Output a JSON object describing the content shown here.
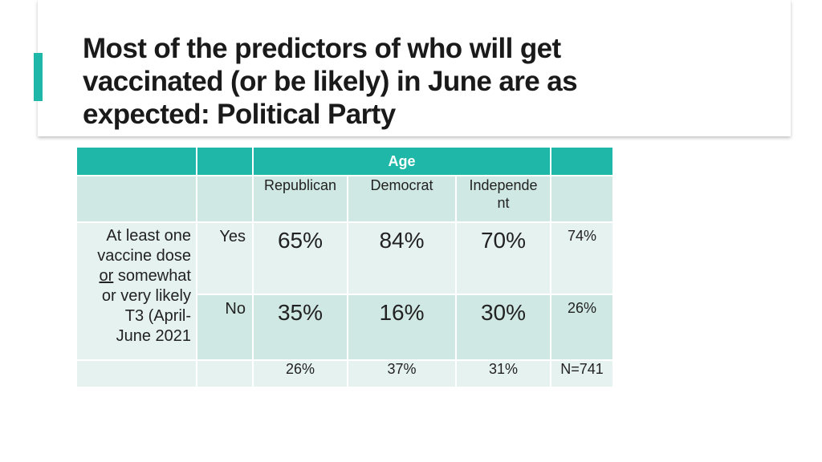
{
  "slide": {
    "title_lines": [
      "Most of the predictors of who will get",
      "vaccinated (or be likely) in June are as",
      "expected:  Political Party"
    ]
  },
  "table": {
    "group_header": "Age",
    "columns": [
      "Republican",
      "Democrat",
      "Independe nt"
    ],
    "column_lines": {
      "republican": "Republican",
      "democrat": "Democrat",
      "independent_1": "Independe",
      "independent_2": "nt"
    },
    "row_label_lines": {
      "l1": "At least one",
      "l2": "vaccine dose",
      "l3_u": "or",
      "l3_rest": " somewhat",
      "l4": "or very likely",
      "l5": "T3 (April-",
      "l6": "June 2021"
    },
    "rows": {
      "yes": {
        "label": "Yes",
        "republican": "65%",
        "democrat": "84%",
        "independent": "70%",
        "total": "74%"
      },
      "no": {
        "label": "No",
        "republican": "35%",
        "democrat": "16%",
        "independent": "30%",
        "total": "26%"
      }
    },
    "footer": {
      "republican": "26%",
      "democrat": "37%",
      "independent": "31%",
      "total": "N=741"
    }
  },
  "colors": {
    "accent": "#1fb8a8",
    "row_dark": "#cfe8e3",
    "row_light": "#e6f2f0"
  }
}
